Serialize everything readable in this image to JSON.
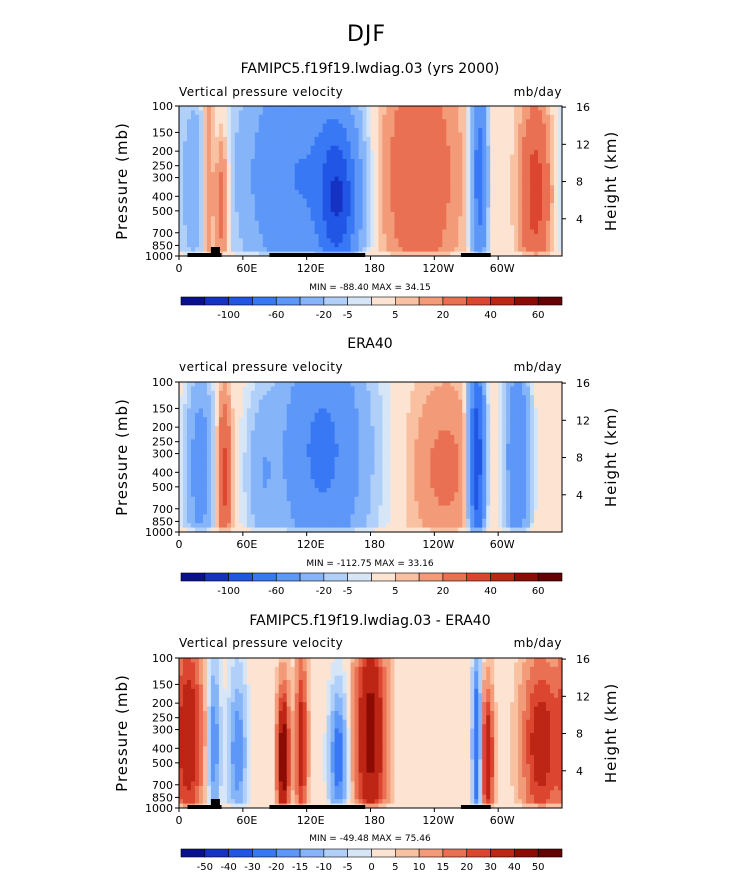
{
  "page": {
    "title": "DJF"
  },
  "palette": {
    "colors": [
      "#08108e",
      "#1432c4",
      "#2156e5",
      "#3978f4",
      "#5d97f8",
      "#86b4f9",
      "#b0d0f9",
      "#d6e6f7",
      "#fde4d2",
      "#f9c1a1",
      "#f39b78",
      "#ea7053",
      "#dc4630",
      "#bd2515",
      "#8c0b05",
      "#620202"
    ]
  },
  "charts": [
    {
      "id": "model",
      "title": "FAMIPC5.f19f19.lwdiag.03 (yrs 2000)",
      "left_label": "Vertical pressure velocity",
      "right_label": "mb/day",
      "minmax": "MIN = -88.40   MAX =  34.15",
      "colorbar_labels": [
        "-100",
        "-60",
        "-20",
        "-5",
        "5",
        "20",
        "40",
        "60"
      ]
    },
    {
      "id": "obs",
      "title": "ERA40",
      "left_label": "vertical pressure velocity",
      "right_label": "mb/day",
      "minmax": "MIN = -112.75   MAX =  33.16",
      "colorbar_labels": [
        "-100",
        "-60",
        "-20",
        "-5",
        "5",
        "20",
        "40",
        "60"
      ]
    },
    {
      "id": "diff",
      "title": "FAMIPC5.f19f19.lwdiag.03 - ERA40",
      "left_label": "Vertical pressure velocity",
      "right_label": "mb/day",
      "minmax": "MIN = -49.48   MAX =  75.46",
      "colorbar_labels": [
        "-50",
        "-40",
        "-30",
        "-20",
        "-15",
        "-10",
        "-5",
        "0",
        "5",
        "10",
        "15",
        "20",
        "30",
        "40",
        "50"
      ]
    }
  ],
  "chart_data": [
    {
      "type": "heatmap",
      "title": "FAMIPC5.f19f19.lwdiag.03 (yrs 2000)",
      "field": "Vertical pressure velocity",
      "units": "mb/day",
      "ylabel": "Pressure (mb)",
      "ylabel_right": "Height (km)",
      "x_ticks": [
        "0",
        "60E",
        "120E",
        "180",
        "120W",
        "60W"
      ],
      "y_ticks": [
        "100",
        "150",
        "200",
        "250",
        "300",
        "400",
        "500",
        "700",
        "850",
        "1000"
      ],
      "y_right_ticks": [
        "4",
        "8",
        "12",
        "16"
      ],
      "min": -88.4,
      "max": 34.15,
      "levels": [
        -100,
        -80,
        -60,
        -40,
        -20,
        -10,
        -5,
        -2,
        2,
        5,
        10,
        20,
        30,
        40,
        50,
        60
      ],
      "features": [
        {
          "lon_center": 15,
          "lon_width": 25,
          "p_top": 150,
          "value": -15
        },
        {
          "lon_center": 27,
          "lon_width": 8,
          "p_top": 100,
          "value": 20
        },
        {
          "lon_center": 40,
          "lon_width": 10,
          "p_top": 250,
          "value": 20
        },
        {
          "lon_center": 110,
          "lon_width": 70,
          "p_top": 120,
          "value": -40
        },
        {
          "lon_center": 150,
          "lon_width": 25,
          "p_top": 250,
          "value": -65
        },
        {
          "lon_center": 225,
          "lon_width": 50,
          "p_top": 120,
          "value": 20
        },
        {
          "lon_center": 282,
          "lon_width": 10,
          "p_top": 120,
          "value": -50
        },
        {
          "lon_center": 335,
          "lon_width": 20,
          "p_top": 200,
          "value": 25
        }
      ]
    },
    {
      "type": "heatmap",
      "title": "ERA40",
      "field": "vertical pressure velocity",
      "units": "mb/day",
      "ylabel": "Pressure (mb)",
      "ylabel_right": "Height (km)",
      "x_ticks": [
        "0",
        "60E",
        "120E",
        "180",
        "120W",
        "60W"
      ],
      "y_ticks": [
        "100",
        "150",
        "200",
        "250",
        "300",
        "400",
        "500",
        "700",
        "850",
        "1000"
      ],
      "y_right_ticks": [
        "4",
        "8",
        "12",
        "16"
      ],
      "min": -112.75,
      "max": 33.16,
      "levels": [
        -100,
        -80,
        -60,
        -40,
        -20,
        -10,
        -5,
        -2,
        2,
        5,
        10,
        20,
        30,
        40,
        50,
        60
      ],
      "features": [
        {
          "lon_center": 20,
          "lon_width": 18,
          "p_top": 200,
          "value": -30
        },
        {
          "lon_center": 42,
          "lon_width": 10,
          "p_top": 250,
          "value": 25
        },
        {
          "lon_center": 78,
          "lon_width": 20,
          "p_top": 250,
          "value": -15
        },
        {
          "lon_center": 135,
          "lon_width": 55,
          "p_top": 120,
          "value": -45
        },
        {
          "lon_center": 250,
          "lon_width": 45,
          "p_top": 200,
          "value": 12
        },
        {
          "lon_center": 280,
          "lon_width": 10,
          "p_top": 150,
          "value": -80
        },
        {
          "lon_center": 318,
          "lon_width": 15,
          "p_top": 150,
          "value": -40
        }
      ]
    },
    {
      "type": "heatmap",
      "title": "FAMIPC5.f19f19.lwdiag.03 - ERA40",
      "field": "Vertical pressure velocity",
      "units": "mb/day",
      "ylabel": "Pressure (mb)",
      "ylabel_right": "Height (km)",
      "x_ticks": [
        "0",
        "60E",
        "120E",
        "180",
        "120W",
        "60W"
      ],
      "y_ticks": [
        "100",
        "150",
        "200",
        "250",
        "300",
        "400",
        "500",
        "700",
        "850",
        "1000"
      ],
      "y_right_ticks": [
        "4",
        "8",
        "12",
        "16"
      ],
      "min": -49.48,
      "max": 75.46,
      "levels": [
        -50,
        -40,
        -30,
        -20,
        -15,
        -10,
        -5,
        -2,
        2,
        5,
        10,
        15,
        20,
        30,
        40,
        50
      ],
      "features": [
        {
          "lon_center": 10,
          "lon_width": 18,
          "p_top": 150,
          "value": 25
        },
        {
          "lon_center": 33,
          "lon_width": 8,
          "p_top": 200,
          "value": -20
        },
        {
          "lon_center": 55,
          "lon_width": 12,
          "p_top": 250,
          "value": -20
        },
        {
          "lon_center": 98,
          "lon_width": 8,
          "p_top": 300,
          "value": 40
        },
        {
          "lon_center": 115,
          "lon_width": 8,
          "p_top": 200,
          "value": 25
        },
        {
          "lon_center": 150,
          "lon_width": 12,
          "p_top": 300,
          "value": -25
        },
        {
          "lon_center": 180,
          "lon_width": 20,
          "p_top": 150,
          "value": 35
        },
        {
          "lon_center": 280,
          "lon_width": 6,
          "p_top": 200,
          "value": -30
        },
        {
          "lon_center": 290,
          "lon_width": 8,
          "p_top": 300,
          "value": 30
        },
        {
          "lon_center": 340,
          "lon_width": 25,
          "p_top": 200,
          "value": 25
        }
      ]
    }
  ]
}
